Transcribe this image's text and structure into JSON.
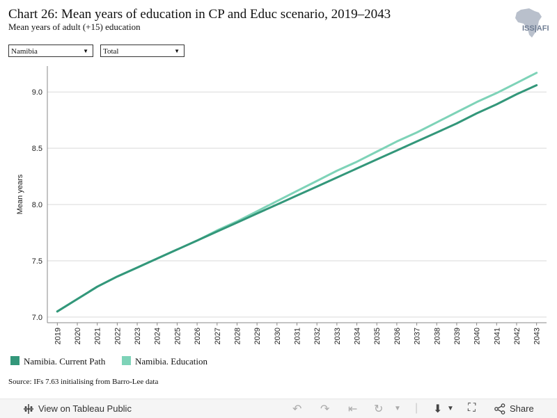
{
  "header": {
    "title": "Chart 26: Mean years of education in CP and Educ scenario, 2019–2043",
    "subtitle": "Mean years of adult (+15) education",
    "logo_text": "ISS|AFI"
  },
  "filters": {
    "country": "Namibia",
    "sex": "Total"
  },
  "colors": {
    "current_path": "#33977a",
    "education": "#7ed3b8",
    "gridline": "#d9d9d9",
    "axis": "#888888"
  },
  "chart_data": {
    "type": "line",
    "ylabel": "Mean years",
    "xlabel": "",
    "ylim": [
      6.95,
      9.23
    ],
    "yticks": [
      "7.0",
      "7.5",
      "8.0",
      "8.5",
      "9.0"
    ],
    "grid": true,
    "legend_position": "bottom-left",
    "x": [
      "2019",
      "2020",
      "2021",
      "2022",
      "2023",
      "2024",
      "2025",
      "2026",
      "2027",
      "2028",
      "2029",
      "2030",
      "2031",
      "2032",
      "2033",
      "2034",
      "2035",
      "2036",
      "2037",
      "2038",
      "2039",
      "2040",
      "2041",
      "2042",
      "2043"
    ],
    "series": [
      {
        "name": "Namibia. Current Path",
        "values": [
          7.05,
          7.16,
          7.27,
          7.36,
          7.44,
          7.52,
          7.6,
          7.68,
          7.76,
          7.84,
          7.92,
          8.0,
          8.08,
          8.16,
          8.24,
          8.32,
          8.4,
          8.48,
          8.56,
          8.64,
          8.72,
          8.81,
          8.89,
          8.98,
          9.06
        ]
      },
      {
        "name": "Namibia. Education",
        "values": [
          7.05,
          7.16,
          7.27,
          7.36,
          7.44,
          7.52,
          7.6,
          7.68,
          7.77,
          7.85,
          7.94,
          8.03,
          8.12,
          8.21,
          8.3,
          8.38,
          8.47,
          8.56,
          8.64,
          8.73,
          8.82,
          8.91,
          8.99,
          9.08,
          9.17
        ]
      }
    ]
  },
  "source": "Source: IFs 7.63 initialising from Barro-Lee data",
  "footer": {
    "view_label": "View on Tableau Public",
    "share_label": "Share"
  }
}
